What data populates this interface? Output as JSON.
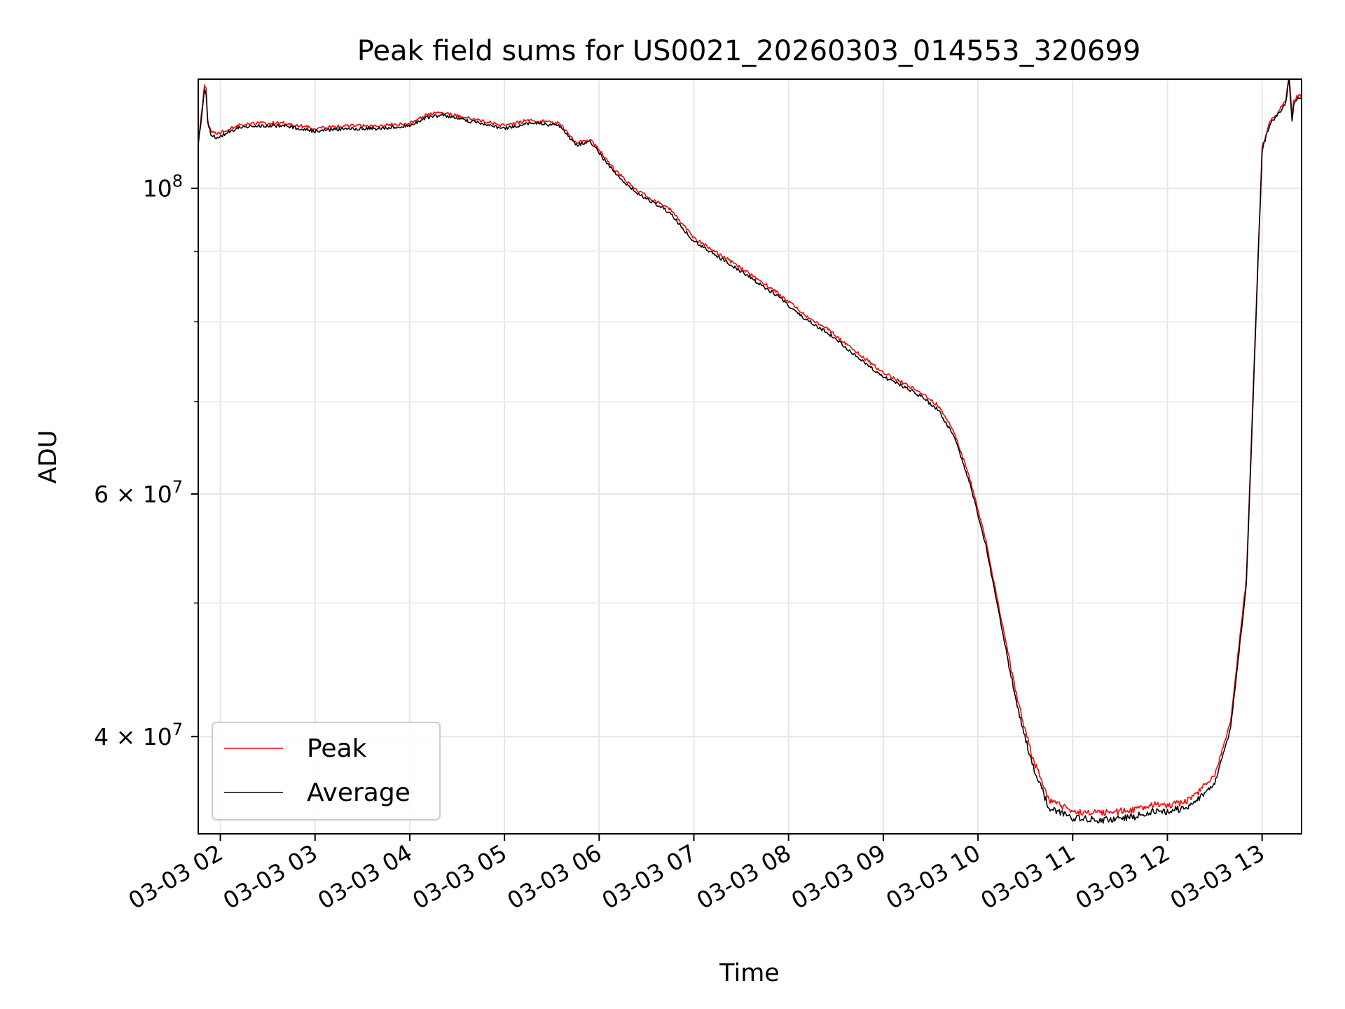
{
  "chart_data": {
    "type": "line",
    "title": "Peak field sums for US0021_20260303_014553_320699",
    "xlabel": "Time",
    "ylabel": "ADU",
    "y_scale": "log",
    "xlim": [
      "2026-03-03 01:46",
      "2026-03-03 13:25"
    ],
    "ylim": [
      34000000,
      120000000
    ],
    "grid": true,
    "legend_position": "lower-left",
    "x_ticks": [
      "2026-03-03 02:00",
      "2026-03-03 03:00",
      "2026-03-03 04:00",
      "2026-03-03 05:00",
      "2026-03-03 06:00",
      "2026-03-03 07:00",
      "2026-03-03 08:00",
      "2026-03-03 09:00",
      "2026-03-03 10:00",
      "2026-03-03 11:00",
      "2026-03-03 12:00",
      "2026-03-03 13:00"
    ],
    "x_tick_labels": [
      "03-03 02",
      "03-03 03",
      "03-03 04",
      "03-03 05",
      "03-03 06",
      "03-03 07",
      "03-03 08",
      "03-03 09",
      "03-03 10",
      "03-03 11",
      "03-03 12",
      "03-03 13"
    ],
    "y_major_ticks": [
      {
        "value": 40000000,
        "mantissa": "4",
        "exponent": "7"
      },
      {
        "value": 60000000,
        "mantissa": "6",
        "exponent": "7"
      },
      {
        "value": 100000000,
        "mantissa": "",
        "exponent": "8"
      }
    ],
    "y_minor_ticks": [
      50000000,
      70000000,
      80000000,
      90000000
    ],
    "times_symbol": "×",
    "base": "10",
    "series": [
      {
        "name": "Peak",
        "color": "#ff0000"
      },
      {
        "name": "Average",
        "color": "#000000"
      }
    ],
    "x": [
      "2026-03-03 01:46",
      "2026-03-03 01:48",
      "2026-03-03 01:50",
      "2026-03-03 01:51",
      "2026-03-03 01:52",
      "2026-03-03 01:54",
      "2026-03-03 01:58",
      "2026-03-03 02:10",
      "2026-03-03 02:25",
      "2026-03-03 02:40",
      "2026-03-03 03:00",
      "2026-03-03 03:20",
      "2026-03-03 03:40",
      "2026-03-03 04:00",
      "2026-03-03 04:10",
      "2026-03-03 04:20",
      "2026-03-03 04:35",
      "2026-03-03 04:45",
      "2026-03-03 05:00",
      "2026-03-03 05:15",
      "2026-03-03 05:25",
      "2026-03-03 05:35",
      "2026-03-03 05:45",
      "2026-03-03 05:55",
      "2026-03-03 06:10",
      "2026-03-03 06:25",
      "2026-03-03 06:45",
      "2026-03-03 07:00",
      "2026-03-03 07:10",
      "2026-03-03 07:30",
      "2026-03-03 07:50",
      "2026-03-03 08:10",
      "2026-03-03 08:25",
      "2026-03-03 08:40",
      "2026-03-03 09:00",
      "2026-03-03 09:15",
      "2026-03-03 09:25",
      "2026-03-03 09:35",
      "2026-03-03 09:45",
      "2026-03-03 09:55",
      "2026-03-03 10:05",
      "2026-03-03 10:15",
      "2026-03-03 10:25",
      "2026-03-03 10:35",
      "2026-03-03 10:45",
      "2026-03-03 11:00",
      "2026-03-03 11:20",
      "2026-03-03 11:40",
      "2026-03-03 11:50",
      "2026-03-03 12:00",
      "2026-03-03 12:15",
      "2026-03-03 12:30",
      "2026-03-03 12:40",
      "2026-03-03 12:50",
      "2026-03-03 12:55",
      "2026-03-03 13:00",
      "2026-03-03 13:05",
      "2026-03-03 13:10",
      "2026-03-03 13:15",
      "2026-03-03 13:17",
      "2026-03-03 13:19",
      "2026-03-03 13:20",
      "2026-03-03 13:22",
      "2026-03-03 13:25"
    ],
    "peak": [
      108000000,
      113000000,
      119000000,
      118000000,
      112000000,
      110000000,
      109500000,
      111000000,
      111500000,
      111500000,
      110500000,
      111000000,
      111000000,
      111500000,
      113000000,
      113500000,
      112500000,
      112000000,
      111000000,
      112000000,
      111800000,
      111500000,
      108000000,
      108500000,
      103000000,
      99500000,
      96500000,
      92000000,
      90500000,
      87500000,
      84500000,
      81000000,
      79000000,
      76500000,
      73500000,
      72000000,
      71000000,
      69500000,
      66500000,
      61500000,
      55500000,
      48500000,
      42500000,
      38500000,
      36000000,
      35300000,
      35200000,
      35400000,
      35700000,
      35600000,
      36000000,
      37500000,
      41000000,
      52000000,
      75000000,
      107000000,
      112000000,
      113500000,
      116000000,
      121000000,
      113000000,
      115500000,
      116500000,
      117000000
    ],
    "average": [
      107500000,
      112500000,
      118000000,
      117000000,
      111500000,
      109500000,
      108800000,
      110500000,
      111000000,
      111000000,
      110000000,
      110500000,
      110500000,
      111000000,
      112500000,
      113000000,
      112000000,
      111500000,
      110500000,
      111500000,
      111300000,
      111000000,
      107500000,
      108000000,
      102500000,
      99000000,
      96000000,
      91500000,
      90000000,
      87000000,
      84000000,
      80500000,
      78500000,
      76000000,
      73000000,
      71600000,
      70500000,
      69000000,
      66000000,
      61000000,
      55000000,
      48000000,
      42000000,
      38000000,
      35500000,
      34900000,
      34800000,
      35000000,
      35300000,
      35300000,
      35600000,
      37000000,
      40500000,
      51500000,
      74000000,
      106500000,
      111500000,
      113000000,
      115500000,
      120000000,
      112000000,
      115000000,
      116000000,
      116500000
    ]
  }
}
